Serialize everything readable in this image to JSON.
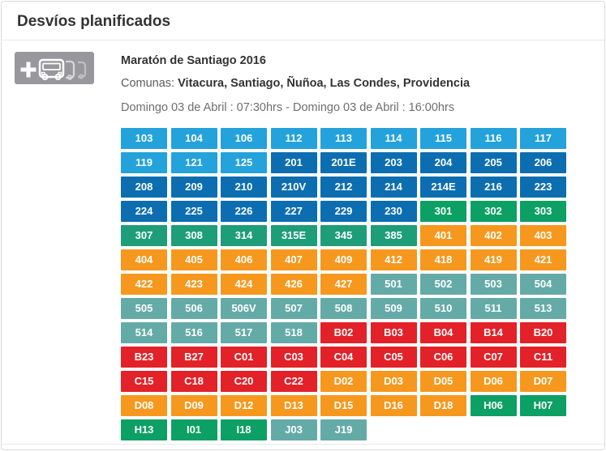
{
  "panel": {
    "title": "Desvíos planificados"
  },
  "event": {
    "icon": "add-bus-icon",
    "title": "Maratón de Santiago 2016",
    "comunas_label": "Comunas:",
    "comunas": "Vitacura, Santiago, Ñuñoa, Las Condes, Providencia",
    "schedule": "Domingo 03 de Abril : 07:30hrs - Domingo 03 de Abril : 16:00hrs"
  },
  "palette": {
    "lightblue": "#24A2DB",
    "darkblue": "#0C6EB1",
    "green": "#0CA064",
    "tealgreen": "#1E9D79",
    "orange": "#F6981E",
    "teal": "#64ABA8",
    "red": "#E32128",
    "button_text": "#FFFFFF",
    "icon_bg": "#98979C"
  },
  "routes": [
    {
      "label": "103",
      "color": "lightblue"
    },
    {
      "label": "104",
      "color": "lightblue"
    },
    {
      "label": "106",
      "color": "lightblue"
    },
    {
      "label": "112",
      "color": "lightblue"
    },
    {
      "label": "113",
      "color": "lightblue"
    },
    {
      "label": "114",
      "color": "lightblue"
    },
    {
      "label": "115",
      "color": "lightblue"
    },
    {
      "label": "116",
      "color": "lightblue"
    },
    {
      "label": "117",
      "color": "lightblue"
    },
    {
      "label": "119",
      "color": "lightblue"
    },
    {
      "label": "121",
      "color": "lightblue"
    },
    {
      "label": "125",
      "color": "lightblue"
    },
    {
      "label": "201",
      "color": "darkblue"
    },
    {
      "label": "201E",
      "color": "darkblue"
    },
    {
      "label": "203",
      "color": "darkblue"
    },
    {
      "label": "204",
      "color": "darkblue"
    },
    {
      "label": "205",
      "color": "darkblue"
    },
    {
      "label": "206",
      "color": "darkblue"
    },
    {
      "label": "208",
      "color": "darkblue"
    },
    {
      "label": "209",
      "color": "darkblue"
    },
    {
      "label": "210",
      "color": "darkblue"
    },
    {
      "label": "210V",
      "color": "darkblue"
    },
    {
      "label": "212",
      "color": "darkblue"
    },
    {
      "label": "214",
      "color": "darkblue"
    },
    {
      "label": "214E",
      "color": "darkblue"
    },
    {
      "label": "216",
      "color": "darkblue"
    },
    {
      "label": "223",
      "color": "darkblue"
    },
    {
      "label": "224",
      "color": "darkblue"
    },
    {
      "label": "225",
      "color": "darkblue"
    },
    {
      "label": "226",
      "color": "darkblue"
    },
    {
      "label": "227",
      "color": "darkblue"
    },
    {
      "label": "229",
      "color": "darkblue"
    },
    {
      "label": "230",
      "color": "darkblue"
    },
    {
      "label": "301",
      "color": "green"
    },
    {
      "label": "302",
      "color": "green"
    },
    {
      "label": "303",
      "color": "green"
    },
    {
      "label": "307",
      "color": "tealgreen"
    },
    {
      "label": "308",
      "color": "tealgreen"
    },
    {
      "label": "314",
      "color": "tealgreen"
    },
    {
      "label": "315E",
      "color": "tealgreen"
    },
    {
      "label": "345",
      "color": "tealgreen"
    },
    {
      "label": "385",
      "color": "tealgreen"
    },
    {
      "label": "401",
      "color": "orange"
    },
    {
      "label": "402",
      "color": "orange"
    },
    {
      "label": "403",
      "color": "orange"
    },
    {
      "label": "404",
      "color": "orange"
    },
    {
      "label": "405",
      "color": "orange"
    },
    {
      "label": "406",
      "color": "orange"
    },
    {
      "label": "407",
      "color": "orange"
    },
    {
      "label": "409",
      "color": "orange"
    },
    {
      "label": "412",
      "color": "orange"
    },
    {
      "label": "418",
      "color": "orange"
    },
    {
      "label": "419",
      "color": "orange"
    },
    {
      "label": "421",
      "color": "orange"
    },
    {
      "label": "422",
      "color": "orange"
    },
    {
      "label": "423",
      "color": "orange"
    },
    {
      "label": "424",
      "color": "orange"
    },
    {
      "label": "426",
      "color": "orange"
    },
    {
      "label": "427",
      "color": "orange"
    },
    {
      "label": "501",
      "color": "teal"
    },
    {
      "label": "502",
      "color": "teal"
    },
    {
      "label": "503",
      "color": "teal"
    },
    {
      "label": "504",
      "color": "teal"
    },
    {
      "label": "505",
      "color": "teal"
    },
    {
      "label": "506",
      "color": "teal"
    },
    {
      "label": "506V",
      "color": "teal"
    },
    {
      "label": "507",
      "color": "teal"
    },
    {
      "label": "508",
      "color": "teal"
    },
    {
      "label": "509",
      "color": "teal"
    },
    {
      "label": "510",
      "color": "teal"
    },
    {
      "label": "511",
      "color": "teal"
    },
    {
      "label": "513",
      "color": "teal"
    },
    {
      "label": "514",
      "color": "teal"
    },
    {
      "label": "516",
      "color": "teal"
    },
    {
      "label": "517",
      "color": "teal"
    },
    {
      "label": "518",
      "color": "teal"
    },
    {
      "label": "B02",
      "color": "red"
    },
    {
      "label": "B03",
      "color": "red"
    },
    {
      "label": "B04",
      "color": "red"
    },
    {
      "label": "B14",
      "color": "red"
    },
    {
      "label": "B20",
      "color": "red"
    },
    {
      "label": "B23",
      "color": "red"
    },
    {
      "label": "B27",
      "color": "red"
    },
    {
      "label": "C01",
      "color": "red"
    },
    {
      "label": "C03",
      "color": "red"
    },
    {
      "label": "C04",
      "color": "red"
    },
    {
      "label": "C05",
      "color": "red"
    },
    {
      "label": "C06",
      "color": "red"
    },
    {
      "label": "C07",
      "color": "red"
    },
    {
      "label": "C11",
      "color": "red"
    },
    {
      "label": "C15",
      "color": "red"
    },
    {
      "label": "C18",
      "color": "red"
    },
    {
      "label": "C20",
      "color": "red"
    },
    {
      "label": "C22",
      "color": "red"
    },
    {
      "label": "D02",
      "color": "orange"
    },
    {
      "label": "D03",
      "color": "orange"
    },
    {
      "label": "D05",
      "color": "orange"
    },
    {
      "label": "D06",
      "color": "orange"
    },
    {
      "label": "D07",
      "color": "orange"
    },
    {
      "label": "D08",
      "color": "orange"
    },
    {
      "label": "D09",
      "color": "orange"
    },
    {
      "label": "D12",
      "color": "orange"
    },
    {
      "label": "D13",
      "color": "orange"
    },
    {
      "label": "D15",
      "color": "orange"
    },
    {
      "label": "D16",
      "color": "orange"
    },
    {
      "label": "D18",
      "color": "orange"
    },
    {
      "label": "H06",
      "color": "green"
    },
    {
      "label": "H07",
      "color": "green"
    },
    {
      "label": "H13",
      "color": "green"
    },
    {
      "label": "I01",
      "color": "green"
    },
    {
      "label": "I18",
      "color": "green"
    },
    {
      "label": "J03",
      "color": "teal"
    },
    {
      "label": "J19",
      "color": "teal"
    }
  ]
}
